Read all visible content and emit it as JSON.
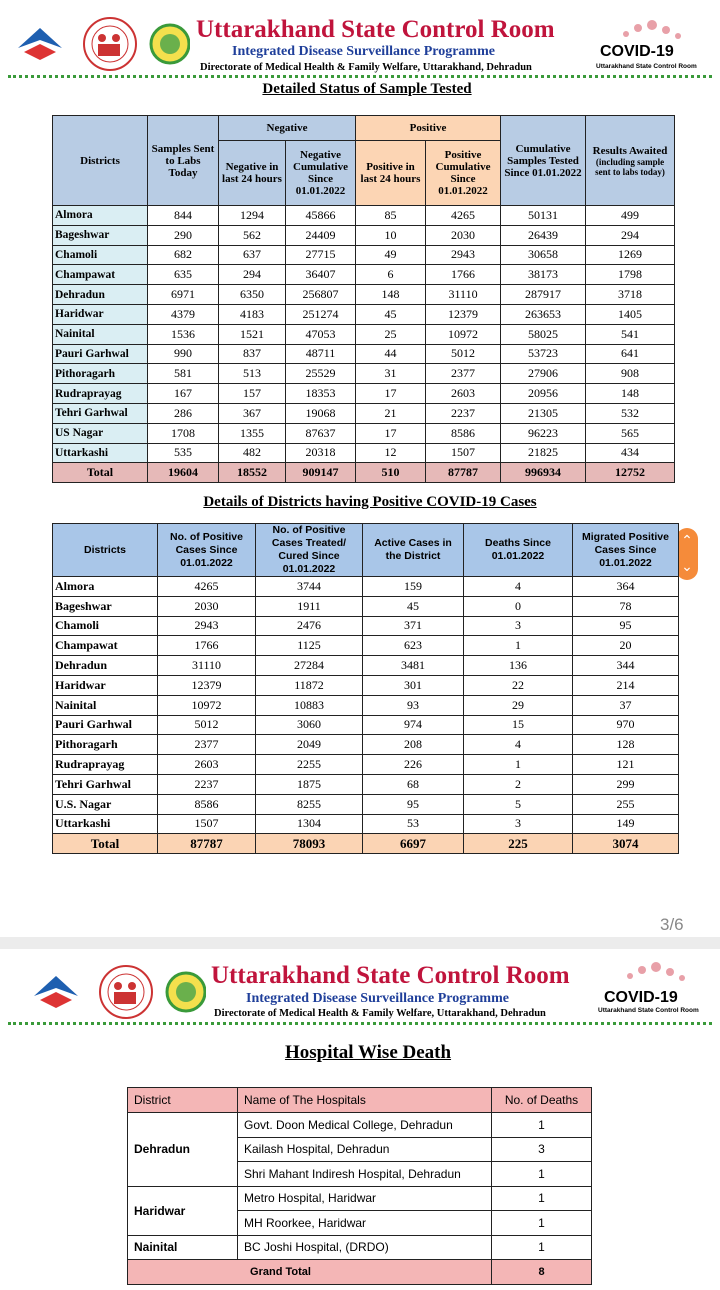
{
  "header": {
    "title": "Uttarakhand State Control Room",
    "subtitle": "Integrated Disease Surveillance Programme",
    "directorate": "Directorate of Medical Health & Family Welfare, Uttarakhand, Dehradun",
    "badge": "COVID-19",
    "badge_caption": "Uttarakhand State Control Room"
  },
  "sample_table": {
    "title": "Detailed Status of Sample Tested",
    "groups": [
      "Negative",
      "Positive"
    ],
    "columns": [
      "Districts",
      "Samples Sent to Labs Today",
      "Negative in last 24 hours",
      "Negative Cumulative Since 01.01.2022",
      "Positive in last 24 hours",
      "Positive Cumulative Since 01.01.2022",
      "Cumulative Samples Tested Since 01.01.2022",
      "Results Awaited"
    ],
    "results_note": "(including sample sent to labs today)",
    "rows": [
      [
        "Almora",
        844,
        1294,
        45866,
        85,
        4265,
        50131,
        499
      ],
      [
        "Bageshwar",
        290,
        562,
        24409,
        10,
        2030,
        26439,
        294
      ],
      [
        "Chamoli",
        682,
        637,
        27715,
        49,
        2943,
        30658,
        1269
      ],
      [
        "Champawat",
        635,
        294,
        36407,
        6,
        1766,
        38173,
        1798
      ],
      [
        "Dehradun",
        6971,
        6350,
        256807,
        148,
        31110,
        287917,
        3718
      ],
      [
        "Haridwar",
        4379,
        4183,
        251274,
        45,
        12379,
        263653,
        1405
      ],
      [
        "Nainital",
        1536,
        1521,
        47053,
        25,
        10972,
        58025,
        541
      ],
      [
        "Pauri Garhwal",
        990,
        837,
        48711,
        44,
        5012,
        53723,
        641
      ],
      [
        "Pithoragarh",
        581,
        513,
        25529,
        31,
        2377,
        27906,
        908
      ],
      [
        "Rudraprayag",
        167,
        157,
        18353,
        17,
        2603,
        20956,
        148
      ],
      [
        "Tehri Garhwal",
        286,
        367,
        19068,
        21,
        2237,
        21305,
        532
      ],
      [
        "US Nagar",
        1708,
        1355,
        87637,
        17,
        8586,
        96223,
        565
      ],
      [
        "Uttarkashi",
        535,
        482,
        20318,
        12,
        1507,
        21825,
        434
      ]
    ],
    "total": [
      "Total",
      19604,
      18552,
      909147,
      510,
      87787,
      996934,
      12752
    ]
  },
  "positive_table": {
    "title": "Details of Districts having Positive COVID-19 Cases",
    "columns": [
      "Districts",
      "No. of Positive Cases Since 01.01.2022",
      "No. of Positive Cases Treated/ Cured Since 01.01.2022",
      "Active Cases in the District",
      "Deaths Since 01.01.2022",
      "Migrated Positive Cases Since 01.01.2022"
    ],
    "rows": [
      [
        "Almora",
        4265,
        3744,
        159,
        4,
        364
      ],
      [
        "Bageshwar",
        2030,
        1911,
        45,
        0,
        78
      ],
      [
        "Chamoli",
        2943,
        2476,
        371,
        3,
        95
      ],
      [
        "Champawat",
        1766,
        1125,
        623,
        1,
        20
      ],
      [
        "Dehradun",
        31110,
        27284,
        3481,
        136,
        344
      ],
      [
        "Haridwar",
        12379,
        11872,
        301,
        22,
        214
      ],
      [
        "Nainital",
        10972,
        10883,
        93,
        29,
        37
      ],
      [
        "Pauri Garhwal",
        5012,
        3060,
        974,
        15,
        970
      ],
      [
        "Pithoragarh",
        2377,
        2049,
        208,
        4,
        128
      ],
      [
        "Rudraprayag",
        2603,
        2255,
        226,
        1,
        121
      ],
      [
        "Tehri Garhwal",
        2237,
        1875,
        68,
        2,
        299
      ],
      [
        "U.S. Nagar",
        8586,
        8255,
        95,
        5,
        255
      ],
      [
        "Uttarkashi",
        1507,
        1304,
        53,
        3,
        149
      ]
    ],
    "total": [
      "Total",
      87787,
      78093,
      6697,
      225,
      3074
    ]
  },
  "page_indicator": "3/6",
  "hospital_table": {
    "title": "Hospital Wise Death",
    "columns": [
      "District",
      "Name of The Hospitals",
      "No. of Deaths"
    ],
    "groups": [
      {
        "district": "Dehradun",
        "hospitals": [
          {
            "name": "Govt. Doon Medical College, Dehradun",
            "deaths": 1
          },
          {
            "name": "Kailash Hospital, Dehradun",
            "deaths": 3
          },
          {
            "name": "Shri Mahant Indiresh Hospital, Dehradun",
            "deaths": 1
          }
        ]
      },
      {
        "district": "Haridwar",
        "hospitals": [
          {
            "name": "Metro Hospital, Haridwar",
            "deaths": 1
          },
          {
            "name": "MH Roorkee, Haridwar",
            "deaths": 1
          }
        ]
      },
      {
        "district": "Nainital",
        "hospitals": [
          {
            "name": "BC Joshi Hospital, (DRDO)",
            "deaths": 1
          }
        ]
      }
    ],
    "total": {
      "label": "Grand Total",
      "value": 8
    }
  }
}
